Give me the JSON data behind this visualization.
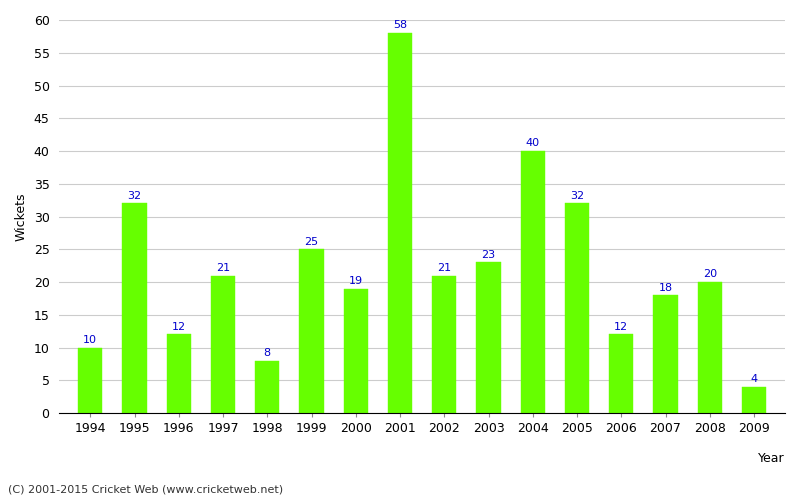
{
  "years": [
    1994,
    1995,
    1996,
    1997,
    1998,
    1999,
    2000,
    2001,
    2002,
    2003,
    2004,
    2005,
    2006,
    2007,
    2008,
    2009
  ],
  "wickets": [
    10,
    32,
    12,
    21,
    8,
    25,
    19,
    58,
    21,
    23,
    40,
    32,
    12,
    18,
    20,
    4
  ],
  "bar_color": "#66ff00",
  "bar_edge_color": "#66ff00",
  "label_color": "#0000cc",
  "ylabel": "Wickets",
  "xlabel": "Year",
  "ylim": [
    0,
    60
  ],
  "yticks": [
    0,
    5,
    10,
    15,
    20,
    25,
    30,
    35,
    40,
    45,
    50,
    55,
    60
  ],
  "title": "",
  "footer": "(C) 2001-2015 Cricket Web (www.cricketweb.net)",
  "background_color": "#ffffff",
  "grid_color": "#cccccc",
  "label_fontsize": 8,
  "axis_fontsize": 9,
  "footer_fontsize": 8
}
